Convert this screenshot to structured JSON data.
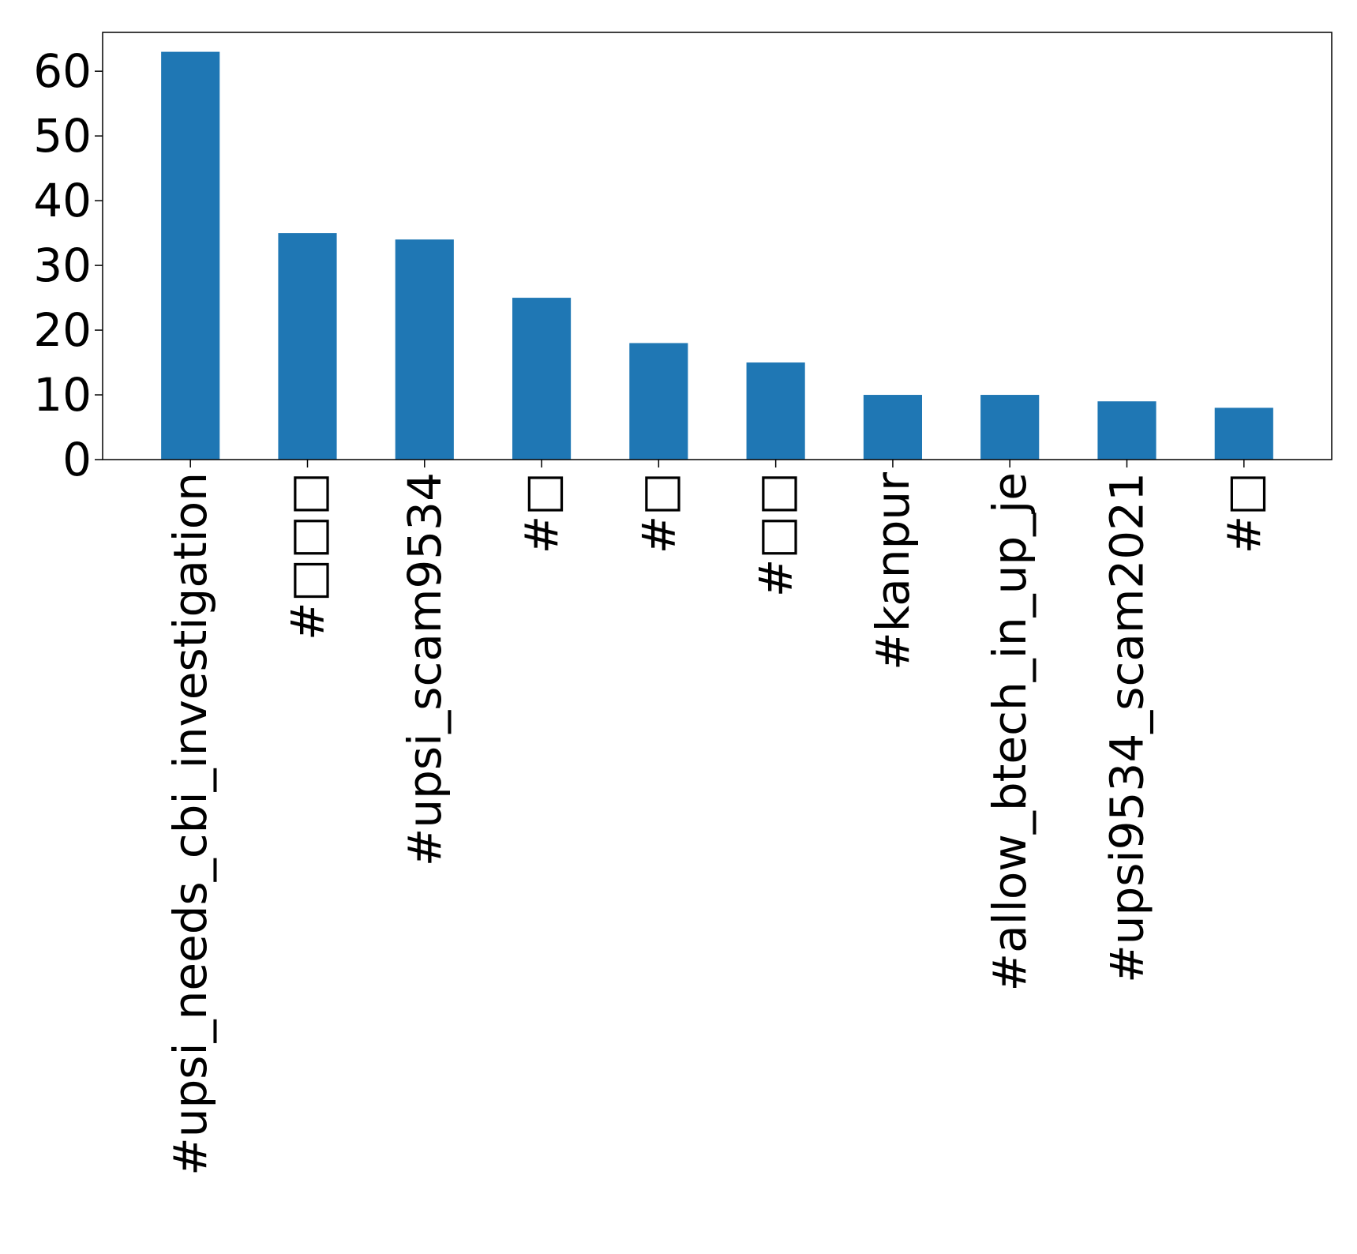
{
  "chart_data": {
    "type": "bar",
    "title": "",
    "xlabel": "",
    "ylabel": "",
    "categories": [
      "#upsi_needs_cbi_investigation",
      "#□□□",
      "#upsi_scam9534",
      "#□",
      "#□",
      "#□□",
      "#kanpur",
      "#allow_btech_in_up_je",
      "#upsi9534_scam2021",
      "#□"
    ],
    "values": [
      63,
      35,
      34,
      25,
      18,
      15,
      10,
      10,
      9,
      8
    ],
    "ylim": [
      0,
      66
    ],
    "yticks": [
      0,
      10,
      20,
      30,
      40,
      50,
      60
    ],
    "grid": false,
    "legend": "none",
    "colors": {
      "bar": "#1f77b4",
      "axis": "#000000",
      "background": "#ffffff"
    }
  }
}
